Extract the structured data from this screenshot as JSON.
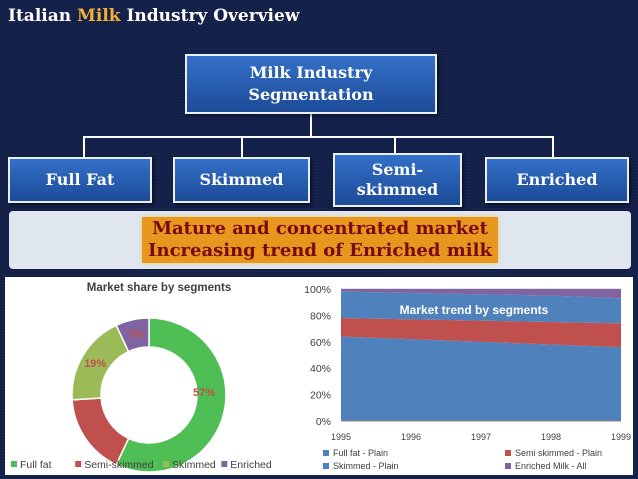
{
  "slide": {
    "title_before": "Italian",
    "title_highlight": "Milk",
    "title_after": "Industry Overview",
    "top_box_line1": "Milk Industry",
    "top_box_line2": "Segmentation",
    "segments": [
      {
        "label": "Full Fat"
      },
      {
        "label": "Skimmed"
      },
      {
        "label_line1": "Semi-",
        "label_line2": "skimmed"
      },
      {
        "label": "Enriched"
      }
    ],
    "banner_line1": "Mature and concentrated market",
    "banner_line2": "Increasing trend of Enriched milk"
  },
  "colors": {
    "background": "#13204a",
    "box_blue": "#2a5fb4",
    "highlight_orange": "#e8971e",
    "title_accent": "#f2b134",
    "series_green": "#4fbf55",
    "series_red": "#c0504d",
    "series_olive": "#9bbb59",
    "series_purple": "#8064a2",
    "series_blue": "#4f81bd"
  },
  "chart_data": [
    {
      "type": "pie",
      "subtype": "doughnut",
      "title": "Market share by segments",
      "categories": [
        "Full fat",
        "Semi-skimmed",
        "Skimmed",
        "Enriched"
      ],
      "values": [
        57,
        17,
        19,
        7
      ],
      "labels": [
        "57%",
        "17%",
        "19%",
        "7%"
      ],
      "legend_position": "bottom"
    },
    {
      "type": "area",
      "subtype": "100% stacked",
      "title": "Market trend by segments",
      "x": [
        "1995",
        "1996",
        "1997",
        "1998",
        "1999"
      ],
      "y_ticks": [
        "0%",
        "20%",
        "40%",
        "60%",
        "80%",
        "100%"
      ],
      "ylim": [
        0,
        100
      ],
      "grid": true,
      "legend_position": "bottom",
      "series": [
        {
          "name": "Full fat - Plain",
          "values": [
            64,
            62,
            60,
            58,
            56
          ]
        },
        {
          "name": "Semi skimmed - Plain",
          "values": [
            14,
            15,
            16,
            17,
            18
          ]
        },
        {
          "name": "Skimmed - Plain",
          "values": [
            20,
            20,
            20,
            20,
            19
          ]
        },
        {
          "name": "Enriched Milk - All",
          "values": [
            2,
            3,
            4,
            5,
            7
          ]
        }
      ]
    }
  ]
}
